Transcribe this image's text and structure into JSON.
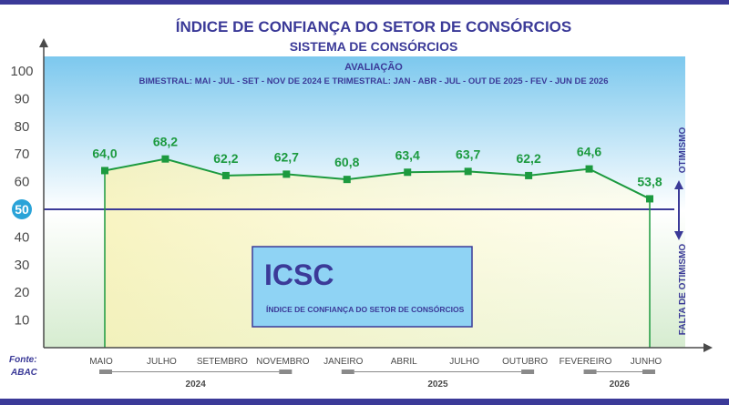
{
  "chart_data": {
    "type": "line",
    "title": "ÍNDICE DE CONFIANÇA DO SETOR DE CONSÓRCIOS",
    "subtitle": "SISTEMA DE CONSÓRCIOS",
    "evaluation_label": "AVALIAÇÃO",
    "evaluation_detail": "BIMESTRAL: MAI - JUL - SET - NOV DE 2024 E TRIMESTRAL: JAN - ABR - JUL - OUT DE 2025 - FEV - JUN DE 2026",
    "categories": [
      "MAIO",
      "JULHO",
      "SETEMBRO",
      "NOVEMBRO",
      "JANEIRO",
      "ABRIL",
      "JULHO",
      "OUTUBRO",
      "FEVEREIRO",
      "JUNHO"
    ],
    "values": [
      64.0,
      68.2,
      62.2,
      62.7,
      60.8,
      63.4,
      63.7,
      62.2,
      64.6,
      53.8
    ],
    "value_labels": [
      "64,0",
      "68,2",
      "62,2",
      "62,7",
      "60,8",
      "63,4",
      "63,7",
      "62,2",
      "64,6",
      "53,8"
    ],
    "year_groups": [
      {
        "label": "2024",
        "from": 0,
        "to": 3
      },
      {
        "label": "2025",
        "from": 4,
        "to": 7
      },
      {
        "label": "2026",
        "from": 8,
        "to": 9
      }
    ],
    "y_ticks": [
      10,
      20,
      30,
      40,
      50,
      60,
      70,
      80,
      90,
      100
    ],
    "ylim": [
      0,
      100
    ],
    "threshold": 50,
    "threshold_label": "50",
    "optimism_label": "OTIMISMO",
    "lack_optimism_label": "FALTA DE OTIMISMO",
    "box_title": "ICSC",
    "box_subtitle": "ÍNDICE DE CONFIANÇA DO SETOR DE CONSÓRCIOS",
    "source_label": "Fonte:",
    "source_value": "ABAC",
    "colors": {
      "line": "#1c9a3f",
      "marker": "#1c9a3f",
      "threshold_line": "#3b3a98",
      "title": "#3b3a98",
      "box_fill": "#8fd3f4",
      "box_border": "#3b3a98",
      "sky_top": "#7cc8ee",
      "sky_bottom": "#ffffff",
      "ground": "#dff0d8",
      "area_fill": "#fbf7c8",
      "frame": "#3b3a98",
      "badge": "#2aa3d8"
    },
    "grid": false
  }
}
